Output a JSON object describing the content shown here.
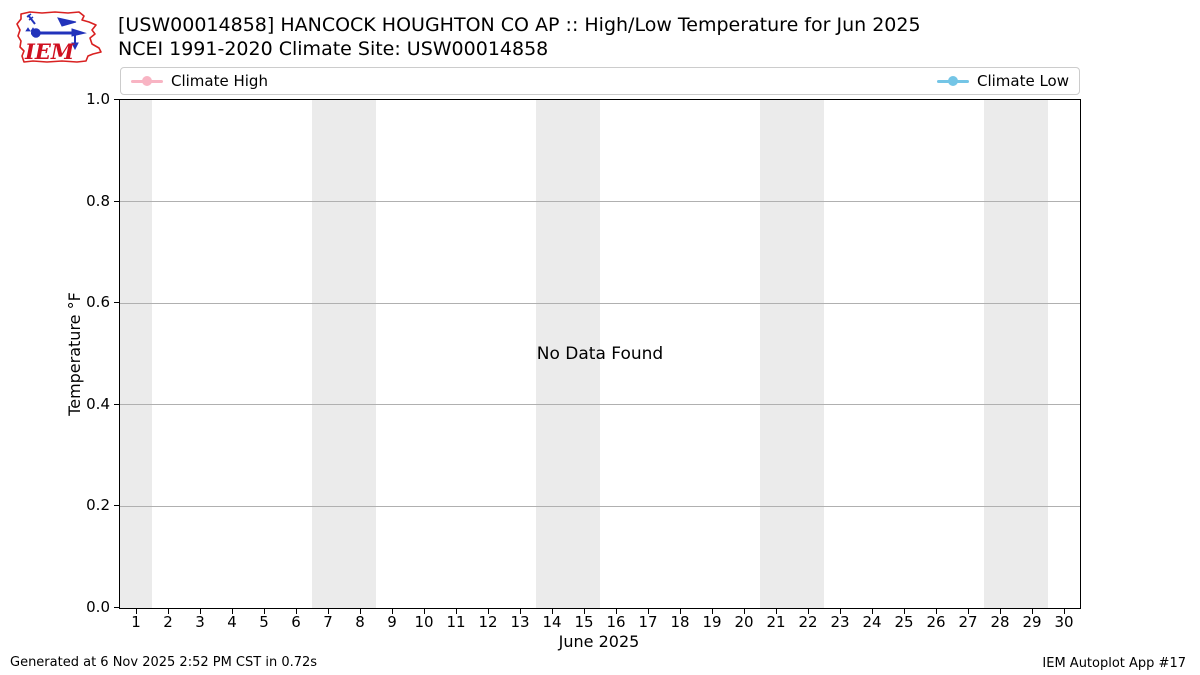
{
  "header": {
    "title_line1": "[USW00014858] HANCOCK HOUGHTON CO AP :: High/Low Temperature for Jun 2025",
    "title_line2": "NCEI 1991-2020 Climate Site: USW00014858",
    "logo_text": "IEM",
    "logo_outline_color": "#d92121",
    "logo_drawing_color": "#2233bb"
  },
  "legend": {
    "items": [
      {
        "label": "Climate High",
        "color": "#f8b4c3"
      },
      {
        "label": "Climate Low",
        "color": "#74c5e6"
      }
    ]
  },
  "chart_data": {
    "type": "line",
    "title": "[USW00014858] HANCOCK HOUGHTON CO AP :: High/Low Temperature for Jun 2025",
    "subtitle": "NCEI 1991-2020 Climate Site: USW00014858",
    "xlabel": "June 2025",
    "ylabel": "Temperature °F",
    "xlim": [
      0.5,
      30.5
    ],
    "ylim": [
      0.0,
      1.0
    ],
    "x_ticks": [
      1,
      2,
      3,
      4,
      5,
      6,
      7,
      8,
      9,
      10,
      11,
      12,
      13,
      14,
      15,
      16,
      17,
      18,
      19,
      20,
      21,
      22,
      23,
      24,
      25,
      26,
      27,
      28,
      29,
      30
    ],
    "y_ticks": [
      0.0,
      0.2,
      0.4,
      0.6,
      0.8,
      1.0
    ],
    "y_tick_labels": [
      "0.0",
      "0.2",
      "0.4",
      "0.6",
      "0.8",
      "1.0"
    ],
    "grid": "horizontal-only",
    "gridline_color": "#b0b0b0",
    "legend_position": "top, full-width row above axes",
    "series": [
      {
        "name": "Climate High",
        "color": "#f8b4c3",
        "marker": "circle",
        "values": []
      },
      {
        "name": "Climate Low",
        "color": "#74c5e6",
        "marker": "circle",
        "values": []
      }
    ],
    "no_data_message": "No Data Found",
    "no_data_position": {
      "x": 15.5,
      "y": 0.5
    },
    "weekend_bands": [
      [
        0.5,
        1.5
      ],
      [
        6.5,
        8.5
      ],
      [
        13.5,
        15.5
      ],
      [
        20.5,
        22.5
      ],
      [
        27.5,
        29.5
      ]
    ],
    "band_color": "#ebebeb",
    "axis_color": "#000000"
  },
  "footer": {
    "left": "Generated at 6 Nov 2025 2:52 PM CST in 0.72s",
    "right": "IEM Autoplot App #17"
  }
}
